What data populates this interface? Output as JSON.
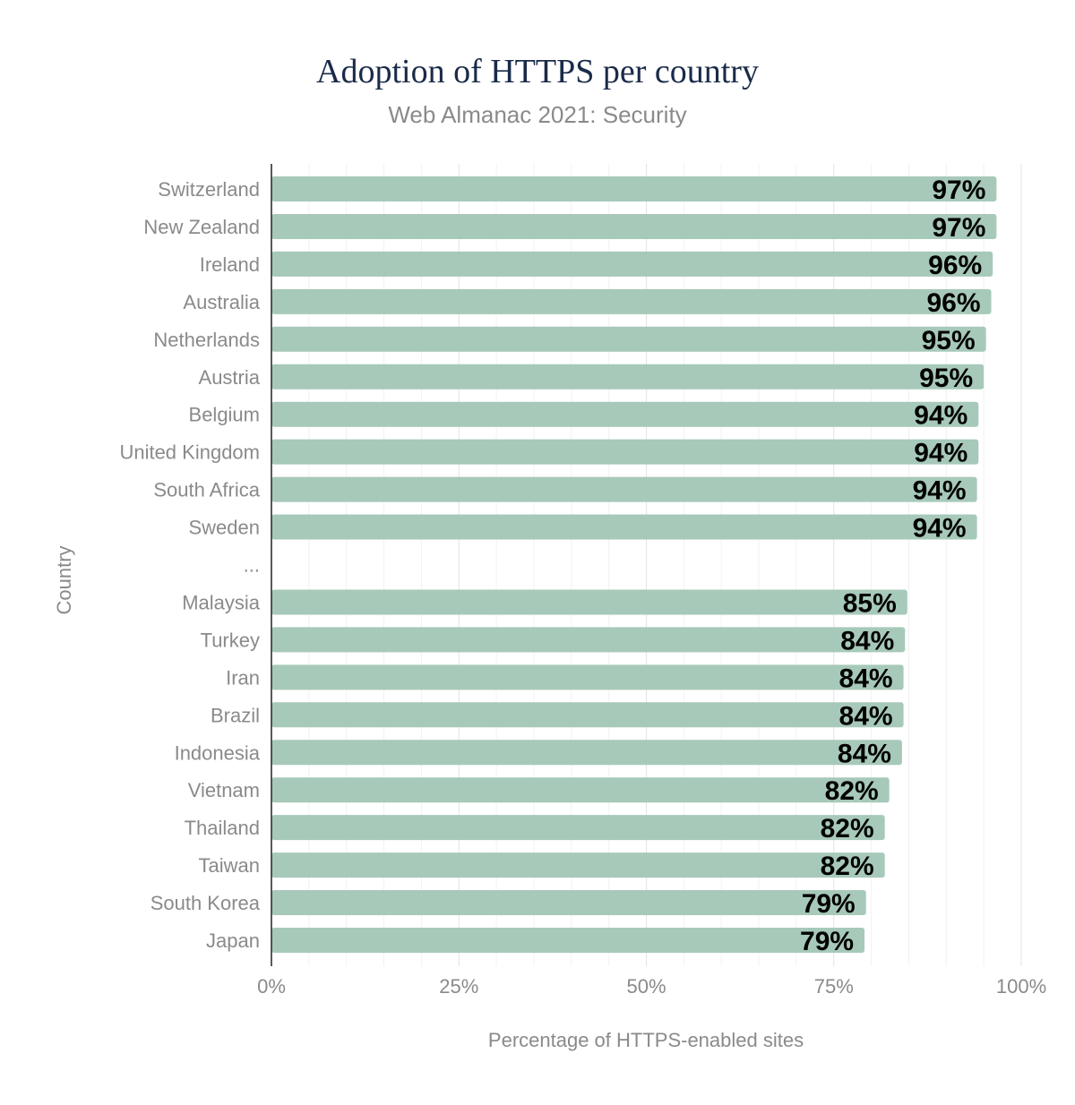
{
  "chart_data": {
    "type": "bar",
    "orientation": "horizontal",
    "title": "Adoption of HTTPS per country",
    "subtitle": "Web Almanac 2021: Security",
    "xlabel": "Percentage of HTTPS-enabled sites",
    "ylabel": "Country",
    "xlim": [
      0,
      100
    ],
    "x_ticks": [
      0,
      25,
      50,
      75,
      100
    ],
    "x_tick_labels": [
      "0%",
      "25%",
      "50%",
      "75%",
      "100%"
    ],
    "grid": true,
    "bar_color": "#a7c9b9",
    "categories": [
      "Switzerland",
      "New Zealand",
      "Ireland",
      "Australia",
      "Netherlands",
      "Austria",
      "Belgium",
      "United Kingdom",
      "South Africa",
      "Sweden",
      "...",
      "Malaysia",
      "Turkey",
      "Iran",
      "Brazil",
      "Indonesia",
      "Vietnam",
      "Thailand",
      "Taiwan",
      "South Korea",
      "Japan"
    ],
    "values": [
      96.7,
      96.7,
      96.2,
      96.0,
      95.3,
      95.0,
      94.3,
      94.3,
      94.1,
      94.1,
      null,
      84.8,
      84.5,
      84.3,
      84.3,
      84.1,
      82.4,
      81.8,
      81.8,
      79.3,
      79.1
    ],
    "data_labels": [
      "97%",
      "97%",
      "96%",
      "96%",
      "95%",
      "95%",
      "94%",
      "94%",
      "94%",
      "94%",
      "",
      "85%",
      "84%",
      "84%",
      "84%",
      "84%",
      "82%",
      "82%",
      "82%",
      "79%",
      "79%"
    ]
  }
}
